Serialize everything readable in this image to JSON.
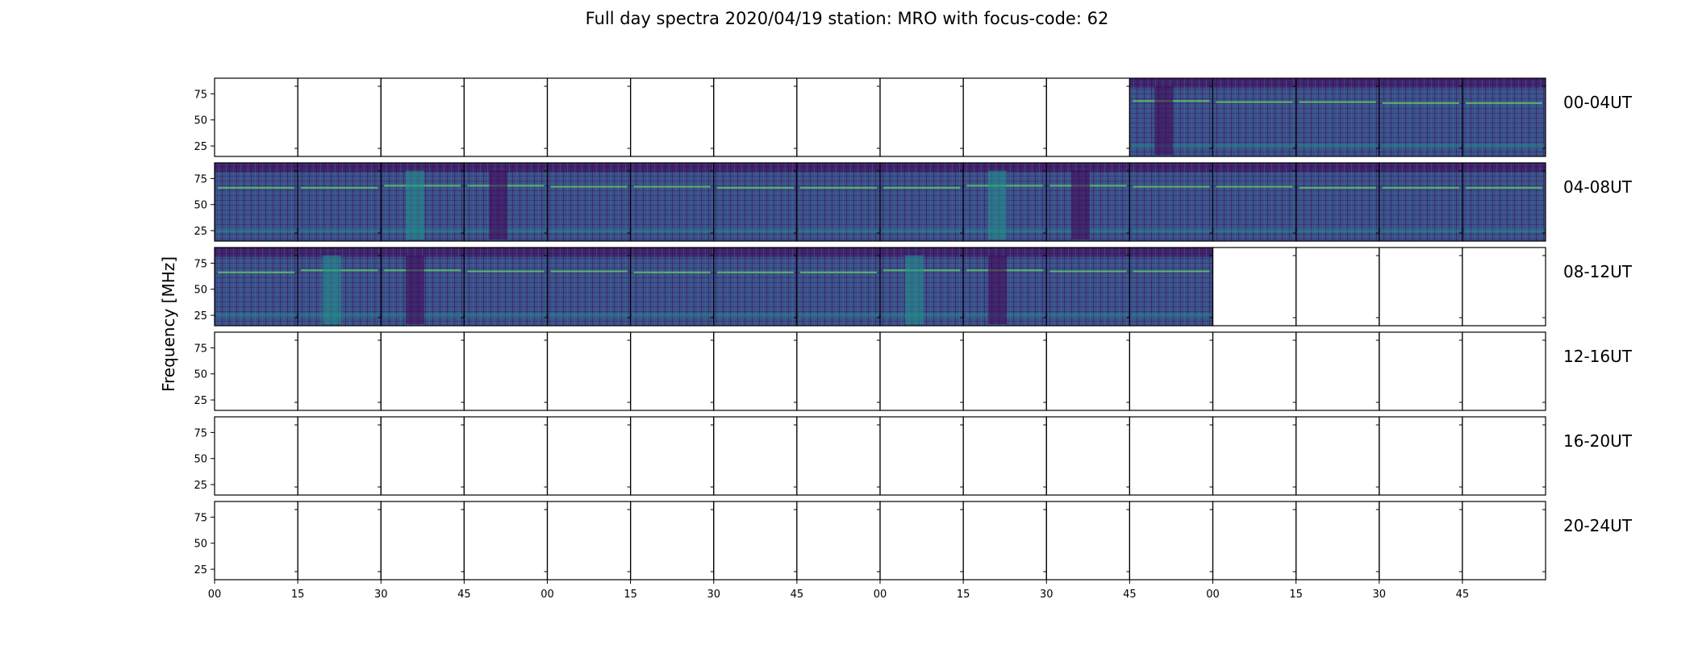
{
  "chart_data": {
    "type": "heatmap",
    "title": "Full day spectra 2020/04/19 station: MRO with focus-code: 62",
    "ylabel": "Frequency [MHz]",
    "yticks": [
      25,
      50,
      75
    ],
    "ylim": [
      15,
      90
    ],
    "xticks": [
      "00",
      "15",
      "30",
      "45",
      "00",
      "15",
      "30",
      "45",
      "00",
      "15",
      "30",
      "45",
      "00",
      "15",
      "30",
      "45"
    ],
    "panels_per_row": 16,
    "panel_minutes": 15,
    "rows": [
      {
        "label": "00-04UT",
        "filled": [
          11,
          12,
          13,
          14,
          15
        ]
      },
      {
        "label": "04-08UT",
        "filled": [
          0,
          1,
          2,
          3,
          4,
          5,
          6,
          7,
          8,
          9,
          10,
          11,
          12,
          13,
          14,
          15
        ]
      },
      {
        "label": "08-12UT",
        "filled": [
          0,
          1,
          2,
          3,
          4,
          5,
          6,
          7,
          8,
          9,
          10,
          11
        ]
      },
      {
        "label": "12-16UT",
        "filled": []
      },
      {
        "label": "16-20UT",
        "filled": []
      },
      {
        "label": "20-24UT",
        "filled": []
      }
    ],
    "colormap": "viridis",
    "colors": {
      "low": "#440154",
      "mid": "#3b528b",
      "high": "#21918c",
      "bright": "#5ec962"
    }
  }
}
